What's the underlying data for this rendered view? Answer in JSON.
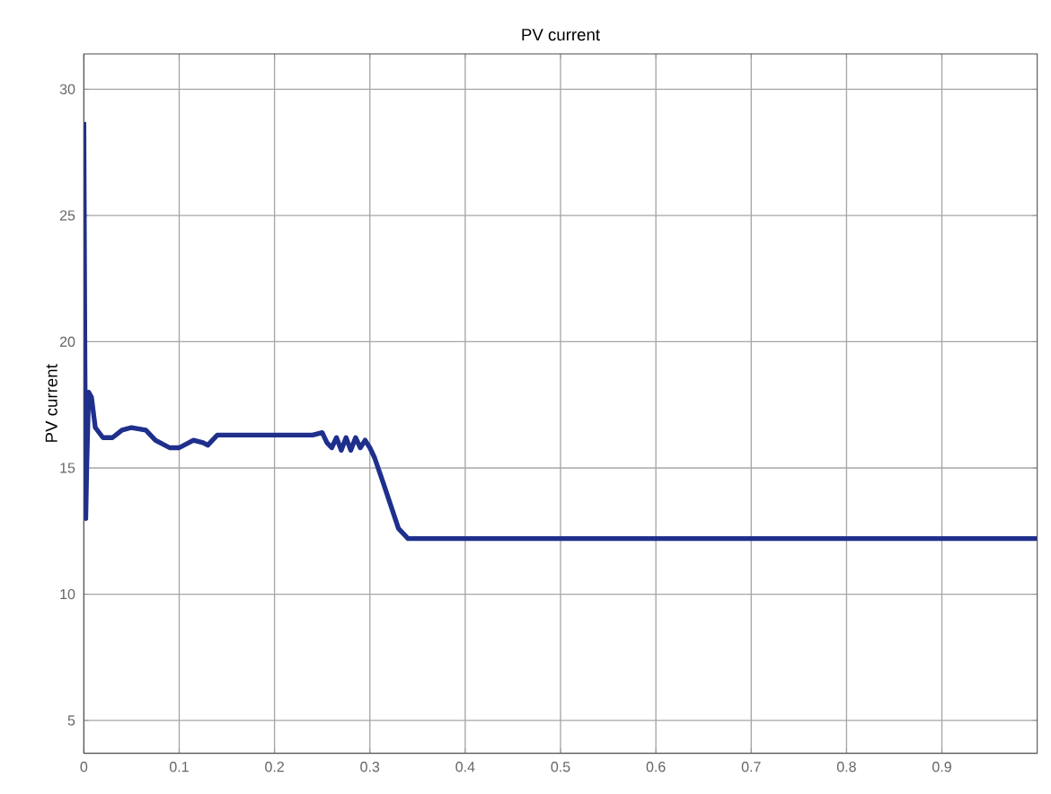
{
  "chart_data": {
    "type": "line",
    "title": "PV current",
    "ylabel": "PV current",
    "x": [
      0,
      0.001,
      0.002,
      0.003,
      0.005,
      0.008,
      0.012,
      0.02,
      0.03,
      0.04,
      0.05,
      0.065,
      0.075,
      0.09,
      0.1,
      0.115,
      0.125,
      0.13,
      0.14,
      0.16,
      0.2,
      0.24,
      0.25,
      0.255,
      0.26,
      0.265,
      0.27,
      0.275,
      0.28,
      0.285,
      0.29,
      0.295,
      0.3,
      0.305,
      0.315,
      0.33,
      0.34,
      0.4,
      0.6,
      0.8,
      1.0
    ],
    "series": [
      {
        "color": "#1f2f8c",
        "values": [
          28.7,
          20,
          13,
          15,
          18,
          17.8,
          16.6,
          16.2,
          16.2,
          16.5,
          16.6,
          16.5,
          16.1,
          15.8,
          15.8,
          16.1,
          16.0,
          15.9,
          16.3,
          16.3,
          16.3,
          16.3,
          16.4,
          16.0,
          15.8,
          16.2,
          15.7,
          16.2,
          15.7,
          16.2,
          15.8,
          16.1,
          15.8,
          15.4,
          14.3,
          12.6,
          12.2,
          12.2,
          12.2,
          12.2,
          12.2
        ]
      }
    ],
    "xlim": [
      0,
      1
    ],
    "ylim": [
      3.7,
      31.4
    ],
    "xticks": [
      0,
      0.1,
      0.2,
      0.3,
      0.4,
      0.5,
      0.6,
      0.7,
      0.8,
      0.9
    ],
    "yticks": [
      5,
      10,
      15,
      20,
      25,
      30
    ],
    "grid": true,
    "line_style": "solid",
    "marker": "none"
  }
}
